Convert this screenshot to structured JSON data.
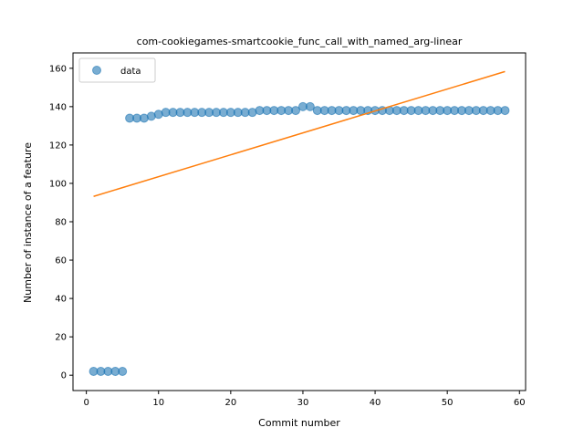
{
  "chart_data": {
    "type": "scatter",
    "title": "com-cookiegames-smartcookie_func_call_with_named_arg-linear",
    "xlabel": "Commit number",
    "ylabel": "Number of instance of a feature",
    "xlim": [
      -1.85,
      60.85
    ],
    "ylim": [
      -8,
      168
    ],
    "xticks": [
      0,
      10,
      20,
      30,
      40,
      50,
      60
    ],
    "yticks": [
      0,
      20,
      40,
      60,
      80,
      100,
      120,
      140,
      160
    ],
    "legend": {
      "position": "top-left",
      "entries": [
        "data"
      ]
    },
    "grid": false,
    "colors": {
      "data": "#1f77b4",
      "fit": "#ff7f0e"
    },
    "series": [
      {
        "name": "data",
        "kind": "scatter",
        "x": [
          1,
          2,
          3,
          4,
          5,
          6,
          7,
          8,
          9,
          10,
          11,
          12,
          13,
          14,
          15,
          16,
          17,
          18,
          19,
          20,
          21,
          22,
          23,
          24,
          25,
          26,
          27,
          28,
          29,
          30,
          31,
          32,
          33,
          34,
          35,
          36,
          37,
          38,
          39,
          40,
          41,
          42,
          43,
          44,
          45,
          46,
          47,
          48,
          49,
          50,
          51,
          52,
          53,
          54,
          55,
          56,
          57,
          58
        ],
        "y": [
          2,
          2,
          2,
          2,
          2,
          134,
          134,
          134,
          135,
          136,
          137,
          137,
          137,
          137,
          137,
          137,
          137,
          137,
          137,
          137,
          137,
          137,
          137,
          138,
          138,
          138,
          138,
          138,
          138,
          140,
          140,
          138,
          138,
          138,
          138,
          138,
          138,
          138,
          138,
          138,
          138,
          138,
          138,
          138,
          138,
          138,
          138,
          138,
          138,
          138,
          138,
          138,
          138,
          138,
          138,
          138,
          138,
          138
        ]
      },
      {
        "kind": "line",
        "x": [
          1,
          58
        ],
        "y": [
          93.2,
          158.3
        ]
      }
    ]
  }
}
